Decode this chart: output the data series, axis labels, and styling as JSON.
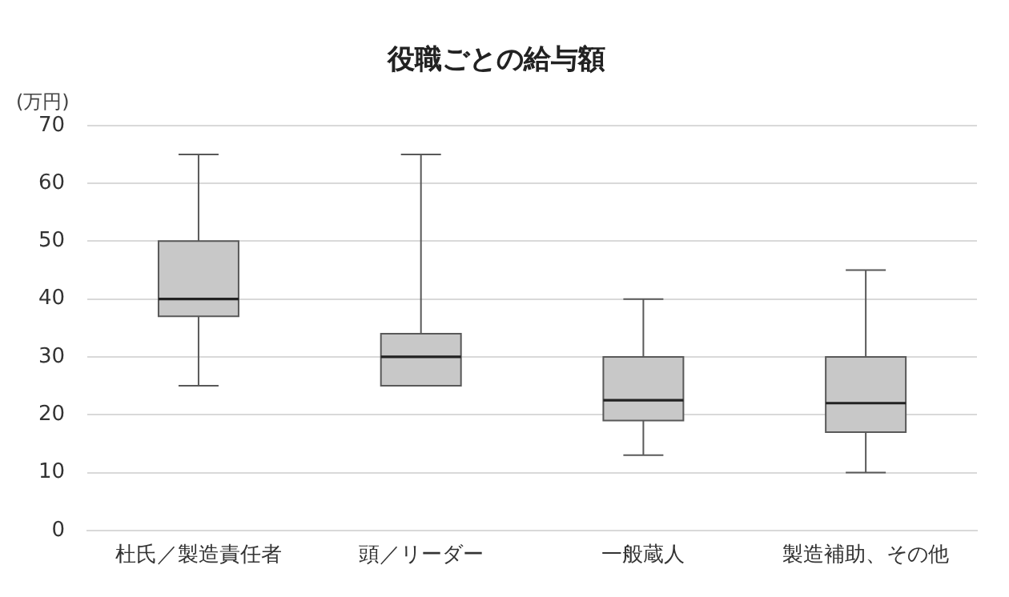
{
  "chart_data": {
    "type": "box",
    "title": "役職ごとの給与額",
    "ylabel": "(万円)",
    "categories": [
      "杜氏／製造責任者",
      "頭／リーダー",
      "一般蔵人",
      "製造補助、その他"
    ],
    "boxes": [
      {
        "low": 25,
        "q1": 37,
        "median": 40,
        "q3": 50,
        "high": 65
      },
      {
        "low": 25,
        "q1": 25,
        "median": 30,
        "q3": 34,
        "high": 65
      },
      {
        "low": 13,
        "q1": 19,
        "median": 22.5,
        "q3": 30,
        "high": 40
      },
      {
        "low": 10,
        "q1": 17,
        "median": 22,
        "q3": 30,
        "high": 45
      }
    ],
    "color": "#c8c8c8",
    "ylim": [
      0,
      70
    ],
    "yticks": [
      0,
      10,
      20,
      30,
      40,
      50,
      60,
      70
    ],
    "grid": "y"
  }
}
